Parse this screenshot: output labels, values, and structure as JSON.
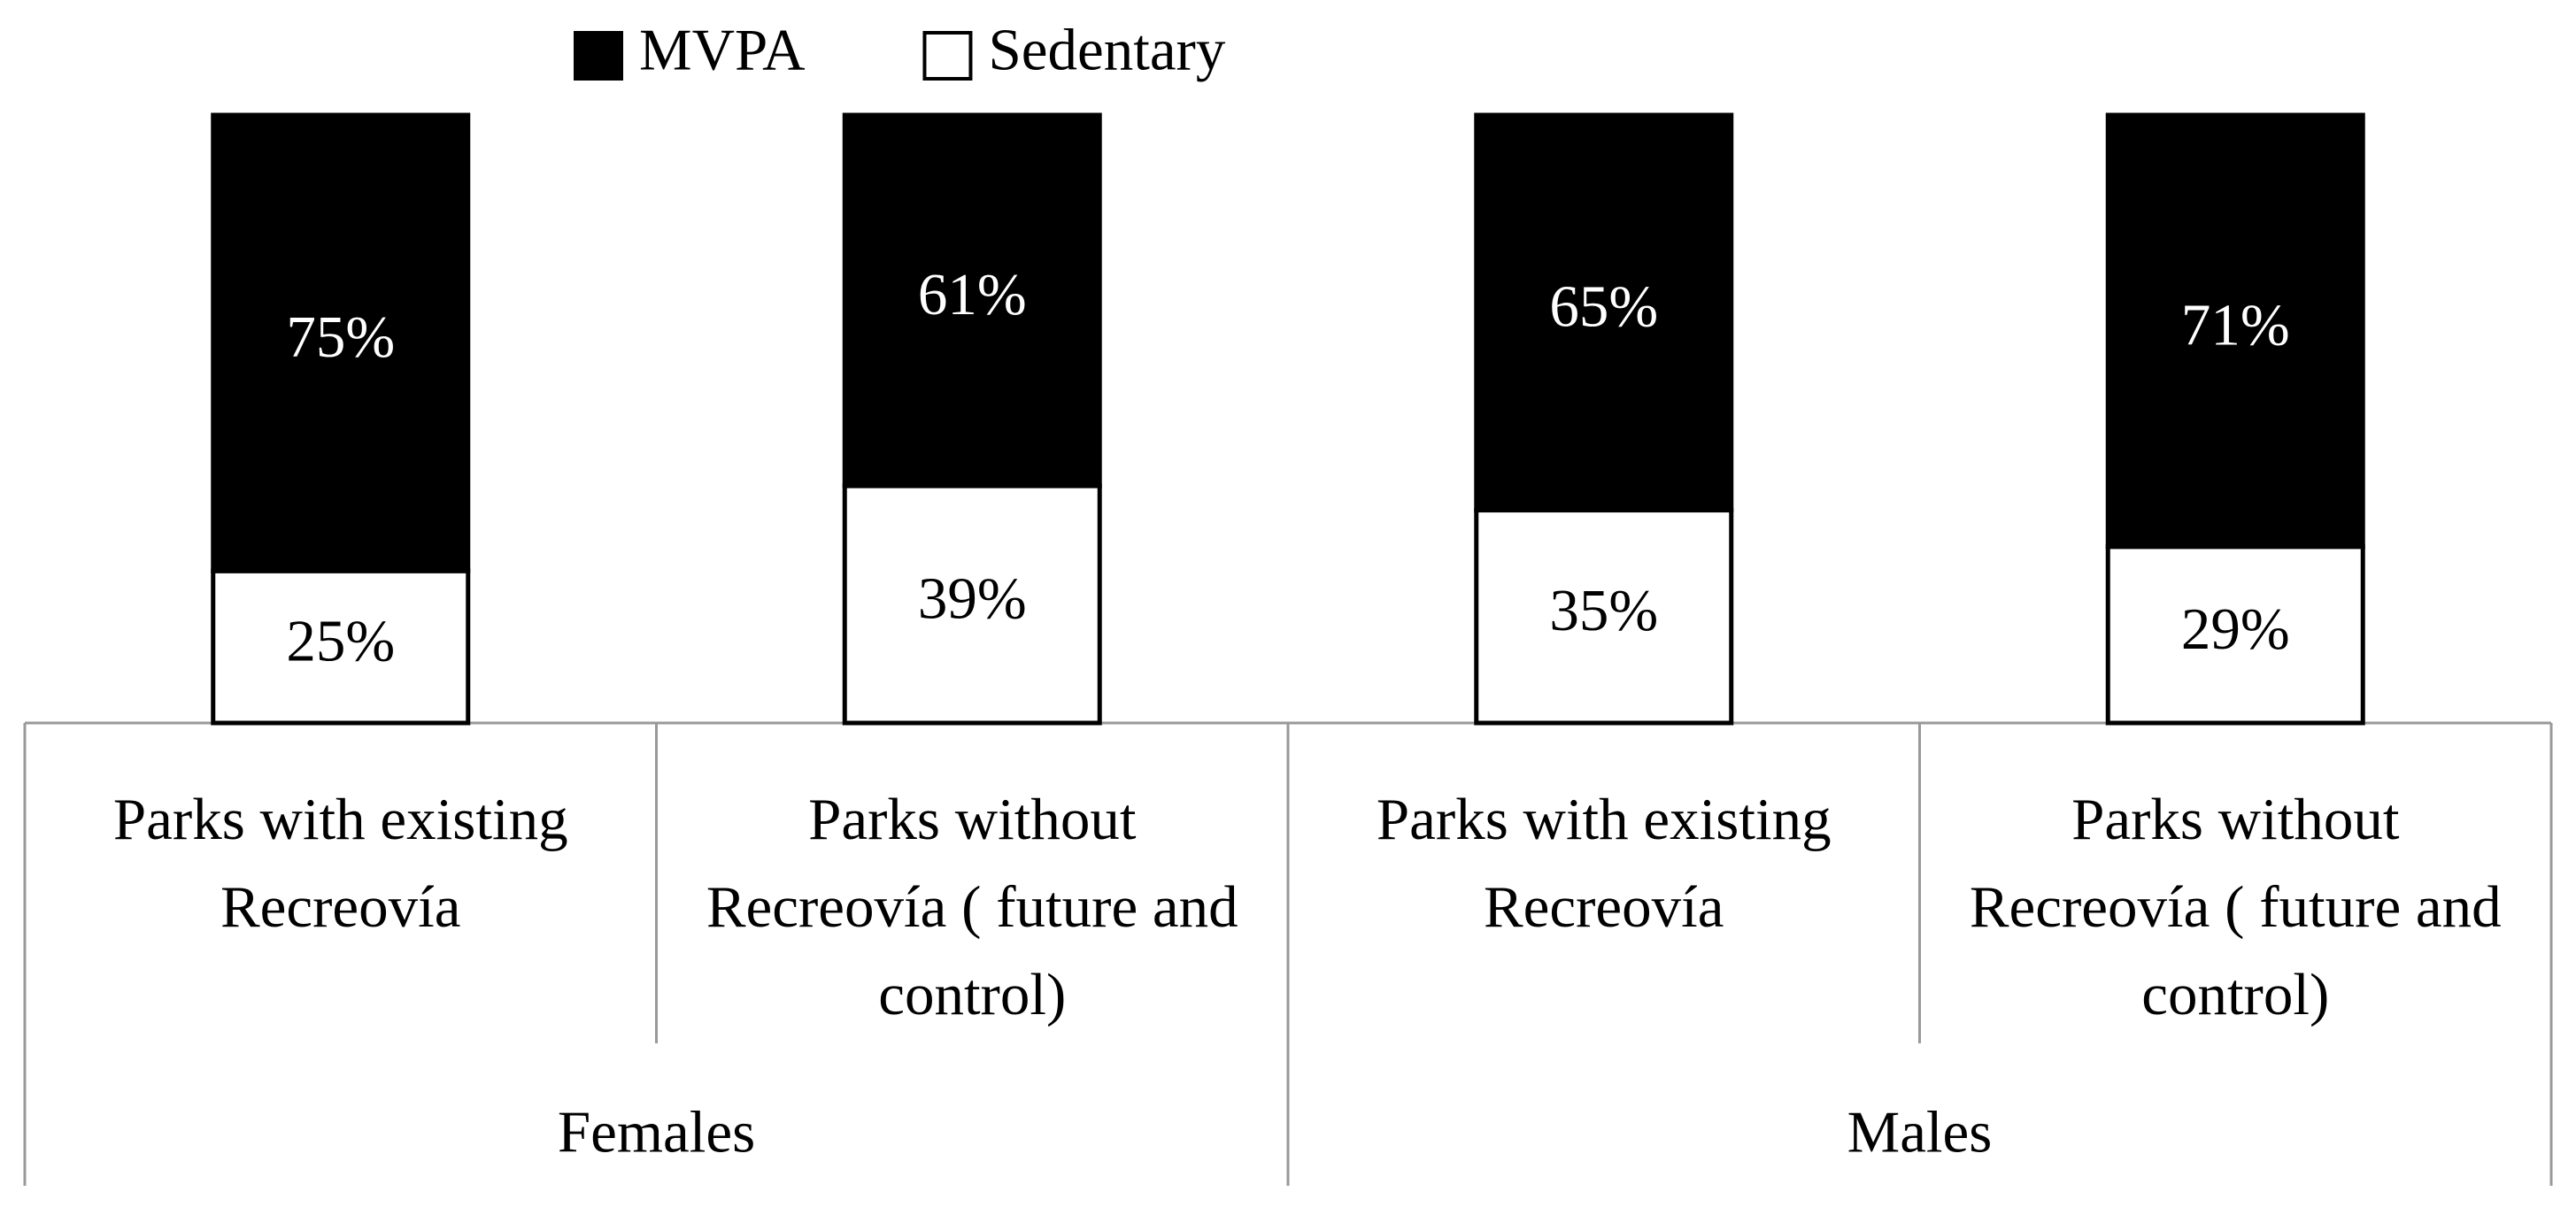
{
  "chart_data": {
    "type": "stacked_bar",
    "categories": [
      "Parks with existing Recreovía",
      "Parks without Recreovía ( future and control)",
      "Parks with existing Recreovía",
      "Parks without Recreovía ( future and control)"
    ],
    "groups": [
      "Females",
      "Males"
    ],
    "series": [
      {
        "name": "Sedentary",
        "color": "#ffffff",
        "values": [
          25,
          39,
          35,
          29
        ],
        "value_labels": [
          "25%",
          "39%",
          "35%",
          "29%"
        ]
      },
      {
        "name": "MVPA",
        "color": "#000000",
        "values": [
          75,
          61,
          65,
          71
        ],
        "value_labels": [
          "75%",
          "61%",
          "65%",
          "71%"
        ]
      }
    ],
    "ylim": [
      0,
      100
    ],
    "legend": "top"
  }
}
